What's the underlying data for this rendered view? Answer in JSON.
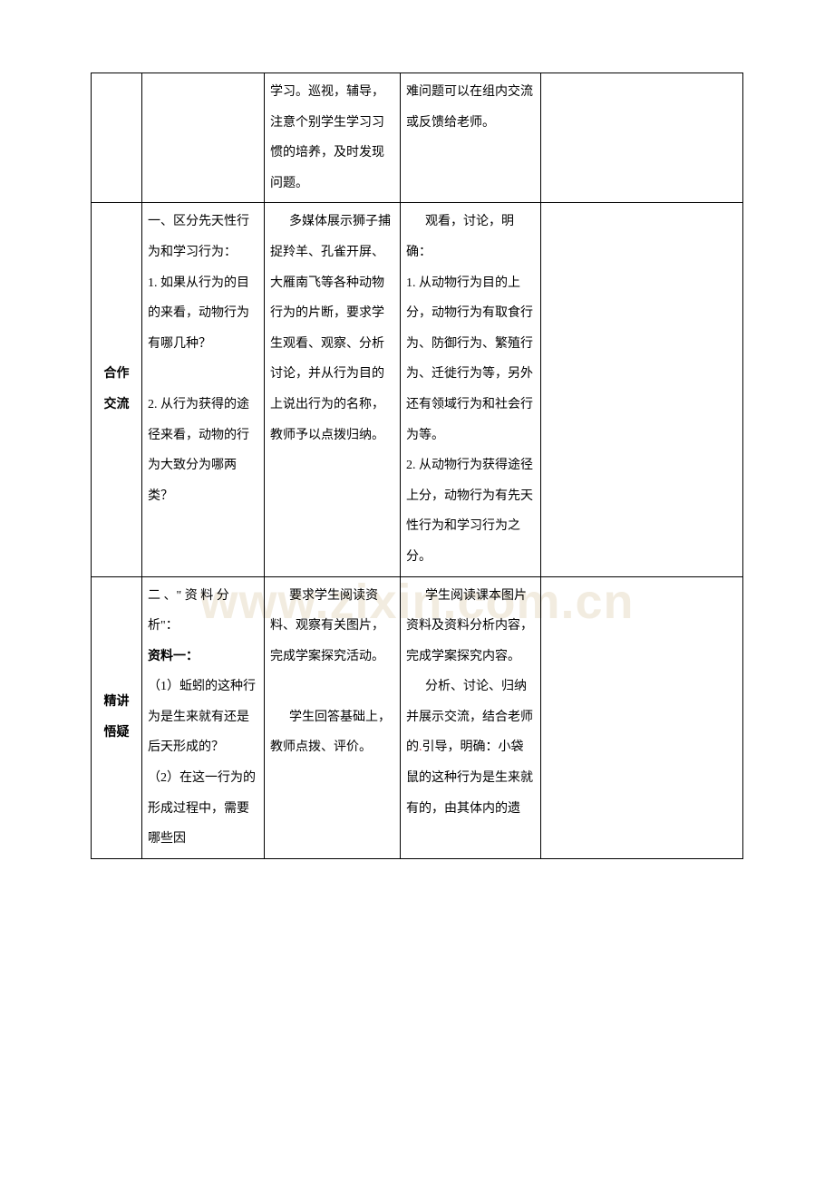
{
  "watermark": "www.zixin.com.cn",
  "table": {
    "row1": {
      "col1": "",
      "col2": "",
      "col3": "学习。巡视，辅导，注意个别学生学习习惯的培养，及时发现问题。",
      "col4": "难问题可以在组内交流或反馈给老师。",
      "col5": ""
    },
    "row2": {
      "col1_l1": "合作",
      "col1_l2": "交流",
      "col2_p1": "一、区分先天性行为和学习行为：",
      "col2_p2": "1.  如果从行为的目的来看，动物行为有哪几种？",
      "col2_p3": "2. 从行为获得的途径来看，动物的行为大致分为哪两类？",
      "col3_p1": "多媒体展示狮子捕捉羚羊、孔雀开屏、大雁南飞等各种动物行为的片断，要求学生观看、观察、分析讨论，并从行为目的上说出行为的名称，教师予以点拨归纳。",
      "col4_p1": "观看，讨论，明确：",
      "col4_p2": "1. 从动物行为目的上分，动物行为有取食行为、防御行为、繁殖行为、迁徙行为等，另外还有领域行为和社会行为等。",
      "col4_p3": "2. 从动物行为获得途径上分，动物行为有先天性行为和学习行为之分。",
      "col5": ""
    },
    "row3": {
      "col1_l1": "精讲",
      "col1_l2": "悟疑",
      "col2_p1": "二 、\" 资 料 分析\"：",
      "col2_p2_bold": "资料一：",
      "col2_p3": "（1）蚯蚓的这种行为是生来就有还是后天形成的？",
      "col2_p4a": "（2）在这一行为的形成过程中，需要哪些因",
      "col3_p1": "要求学生阅读资料、观察有关图片，完成学案探究活动。",
      "col3_p2": "学生回答基础上，教师点拨、评价。",
      "col4_p1": "学生阅读课本图片资料及资料分析内容，完成学案探究内容。",
      "col4_p2a": "分析、讨论、归纳并展示交流，结合老师的",
      "col4_p2b": "引导，明确：小袋鼠的这种行为是生来就有的，由其体内的遗",
      "col5": ""
    },
    "reddot": "."
  }
}
